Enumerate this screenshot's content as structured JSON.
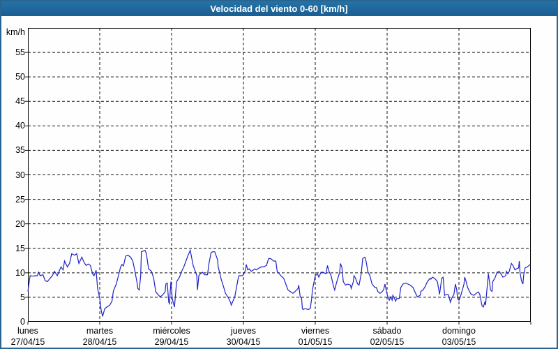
{
  "window": {
    "title": "Velocidad del viento 0-60 [km/h]"
  },
  "colors": {
    "titlebar_bg": "#1d6398",
    "frame_border": "#2a6592",
    "title_text": "#ffffff",
    "plot_bg": "#ffffff",
    "grid": "#111111",
    "axis": "#000000",
    "line": "#2121c8",
    "label_text": "#000000"
  },
  "axes": {
    "y_unit_label": "km/h",
    "y_ticks": [
      55,
      50,
      45,
      40,
      35,
      30,
      25,
      20,
      15,
      10,
      5
    ],
    "y_origin_label": "0"
  },
  "chart_data": {
    "type": "line",
    "title": "Velocidad del viento 0-60 [km/h]",
    "ylabel": "km/h",
    "xlabel": "",
    "ylim": [
      0,
      60
    ],
    "y_tick_step": 5,
    "grid": "dashed, horizontal every 5 km/h, vertical at each day boundary",
    "legend": "none",
    "days": [
      {
        "name": "lunes",
        "date": "27/04/15"
      },
      {
        "name": "martes",
        "date": "28/04/15"
      },
      {
        "name": "miércoles",
        "date": "29/04/15"
      },
      {
        "name": "jueves",
        "date": "30/04/15"
      },
      {
        "name": "viernes",
        "date": "01/05/15"
      },
      {
        "name": "sábado",
        "date": "02/05/15"
      },
      {
        "name": "domingo",
        "date": "03/05/15"
      }
    ],
    "x_unit": "days since lunes 27/04/15 00:00 (axis spans 7 days)",
    "series": [
      {
        "name": "Velocidad del viento",
        "unit": "km/h",
        "color": "#2121c8",
        "points": [
          [
            0,
            6.2
          ],
          [
            0.03,
            9.4
          ],
          [
            0.07,
            9.3
          ],
          [
            0.1,
            9.4
          ],
          [
            0.13,
            9.4
          ],
          [
            0.15,
            10.1
          ],
          [
            0.17,
            9.4
          ],
          [
            0.21,
            9.6
          ],
          [
            0.24,
            8.4
          ],
          [
            0.27,
            8.2
          ],
          [
            0.31,
            8.9
          ],
          [
            0.34,
            9.4
          ],
          [
            0.37,
            10.3
          ],
          [
            0.41,
            9.4
          ],
          [
            0.46,
            11.2
          ],
          [
            0.49,
            10.6
          ],
          [
            0.51,
            12.4
          ],
          [
            0.55,
            11.2
          ],
          [
            0.58,
            11.9
          ],
          [
            0.61,
            13.9
          ],
          [
            0.65,
            13.6
          ],
          [
            0.68,
            13.9
          ],
          [
            0.71,
            11.9
          ],
          [
            0.75,
            13.2
          ],
          [
            0.78,
            12.2
          ],
          [
            0.81,
            11.5
          ],
          [
            0.84,
            11.8
          ],
          [
            0.87,
            11.5
          ],
          [
            0.9,
            9.8
          ],
          [
            0.92,
            9.4
          ],
          [
            0.95,
            10.5
          ],
          [
            0.97,
            6.8
          ],
          [
            1.0,
            4.8
          ],
          [
            1.02,
            2.3
          ],
          [
            1.04,
            1.1
          ],
          [
            1.07,
            2.7
          ],
          [
            1.1,
            3.0
          ],
          [
            1.14,
            3.4
          ],
          [
            1.17,
            4.2
          ],
          [
            1.19,
            6.3
          ],
          [
            1.23,
            7.7
          ],
          [
            1.26,
            9.4
          ],
          [
            1.29,
            11.2
          ],
          [
            1.31,
            11.7
          ],
          [
            1.33,
            11.4
          ],
          [
            1.34,
            12.0
          ],
          [
            1.36,
            13.4
          ],
          [
            1.39,
            13.6
          ],
          [
            1.43,
            13.2
          ],
          [
            1.46,
            12.4
          ],
          [
            1.49,
            10.3
          ],
          [
            1.52,
            7.9
          ],
          [
            1.53,
            6.8
          ],
          [
            1.55,
            6.5
          ],
          [
            1.57,
            9.4
          ],
          [
            1.58,
            14.3
          ],
          [
            1.63,
            14.6
          ],
          [
            1.65,
            13.9
          ],
          [
            1.68,
            10.8
          ],
          [
            1.72,
            10.3
          ],
          [
            1.75,
            8.9
          ],
          [
            1.78,
            6.1
          ],
          [
            1.82,
            5.4
          ],
          [
            1.84,
            5.1
          ],
          [
            1.87,
            5.4
          ],
          [
            1.91,
            6.1
          ],
          [
            1.92,
            7.7
          ],
          [
            1.94,
            7.9
          ],
          [
            1.96,
            4.0
          ],
          [
            1.97,
            3.7
          ],
          [
            1.99,
            8.2
          ],
          [
            2.01,
            4.7
          ],
          [
            2.04,
            3.0
          ],
          [
            2.07,
            8.2
          ],
          [
            2.11,
            9.1
          ],
          [
            2.14,
            10.3
          ],
          [
            2.17,
            11.2
          ],
          [
            2.2,
            12.4
          ],
          [
            2.23,
            13.6
          ],
          [
            2.26,
            14.6
          ],
          [
            2.3,
            11.5
          ],
          [
            2.33,
            10.3
          ],
          [
            2.35,
            9.4
          ],
          [
            2.36,
            6.5
          ],
          [
            2.38,
            9.4
          ],
          [
            2.4,
            9.8
          ],
          [
            2.43,
            10.1
          ],
          [
            2.46,
            9.6
          ],
          [
            2.5,
            9.6
          ],
          [
            2.52,
            11.9
          ],
          [
            2.55,
            14.1
          ],
          [
            2.57,
            14.3
          ],
          [
            2.6,
            14.3
          ],
          [
            2.64,
            12.7
          ],
          [
            2.65,
            11.2
          ],
          [
            2.69,
            8.7
          ],
          [
            2.72,
            7.3
          ],
          [
            2.75,
            5.8
          ],
          [
            2.79,
            4.9
          ],
          [
            2.82,
            4.0
          ],
          [
            2.83,
            3.4
          ],
          [
            2.84,
            3.7
          ],
          [
            2.88,
            5.1
          ],
          [
            2.91,
            7.5
          ],
          [
            2.93,
            9.1
          ],
          [
            2.94,
            9.4
          ],
          [
            2.98,
            9.4
          ],
          [
            3.0,
            9.6
          ],
          [
            3.03,
            10.6
          ],
          [
            3.04,
            11.7
          ],
          [
            3.06,
            10.6
          ],
          [
            3.08,
            10.8
          ],
          [
            3.11,
            10.3
          ],
          [
            3.14,
            10.6
          ],
          [
            3.16,
            10.8
          ],
          [
            3.18,
            10.6
          ],
          [
            3.22,
            11.0
          ],
          [
            3.25,
            11.2
          ],
          [
            3.28,
            11.2
          ],
          [
            3.32,
            11.5
          ],
          [
            3.35,
            12.9
          ],
          [
            3.38,
            12.9
          ],
          [
            3.42,
            12.4
          ],
          [
            3.45,
            12.4
          ],
          [
            3.47,
            10.3
          ],
          [
            3.5,
            9.8
          ],
          [
            3.52,
            9.4
          ],
          [
            3.56,
            8.9
          ],
          [
            3.59,
            7.7
          ],
          [
            3.62,
            6.5
          ],
          [
            3.66,
            6.1
          ],
          [
            3.69,
            5.8
          ],
          [
            3.72,
            6.2
          ],
          [
            3.76,
            6.8
          ],
          [
            3.77,
            7.5
          ],
          [
            3.79,
            5.1
          ],
          [
            3.81,
            4.8
          ],
          [
            3.82,
            2.7
          ],
          [
            3.83,
            2.5
          ],
          [
            3.86,
            2.7
          ],
          [
            3.9,
            2.5
          ],
          [
            3.93,
            2.7
          ],
          [
            3.95,
            4.8
          ],
          [
            3.96,
            6.5
          ],
          [
            3.98,
            7.9
          ],
          [
            4.0,
            9.4
          ],
          [
            4.03,
            9.8
          ],
          [
            4.05,
            9.1
          ],
          [
            4.08,
            10.1
          ],
          [
            4.11,
            10.1
          ],
          [
            4.15,
            9.8
          ],
          [
            4.17,
            11.5
          ],
          [
            4.19,
            10.3
          ],
          [
            4.22,
            9.4
          ],
          [
            4.25,
            7.5
          ],
          [
            4.27,
            6.5
          ],
          [
            4.3,
            8.2
          ],
          [
            4.34,
            10.1
          ],
          [
            4.35,
            11.9
          ],
          [
            4.37,
            11.2
          ],
          [
            4.39,
            8.2
          ],
          [
            4.42,
            7.5
          ],
          [
            4.45,
            7.7
          ],
          [
            4.49,
            7.5
          ],
          [
            4.5,
            6.8
          ],
          [
            4.53,
            8.2
          ],
          [
            4.54,
            9.4
          ],
          [
            4.56,
            8.9
          ],
          [
            4.59,
            7.7
          ],
          [
            4.61,
            7.5
          ],
          [
            4.64,
            9.8
          ],
          [
            4.66,
            12.9
          ],
          [
            4.69,
            13.2
          ],
          [
            4.71,
            12.2
          ],
          [
            4.73,
            10.3
          ],
          [
            4.76,
            9.4
          ],
          [
            4.79,
            7.7
          ],
          [
            4.83,
            7.0
          ],
          [
            4.85,
            7.0
          ],
          [
            4.87,
            6.2
          ],
          [
            4.9,
            5.8
          ],
          [
            4.92,
            6.0
          ],
          [
            4.95,
            6.5
          ],
          [
            4.97,
            7.7
          ],
          [
            5.0,
            5.6
          ],
          [
            5.02,
            4.7
          ],
          [
            5.03,
            4.4
          ],
          [
            5.05,
            5.1
          ],
          [
            5.07,
            4.4
          ],
          [
            5.08,
            5.4
          ],
          [
            5.12,
            4.2
          ],
          [
            5.13,
            4.7
          ],
          [
            5.17,
            4.8
          ],
          [
            5.19,
            7.0
          ],
          [
            5.22,
            7.7
          ],
          [
            5.26,
            7.9
          ],
          [
            5.29,
            7.7
          ],
          [
            5.32,
            7.5
          ],
          [
            5.36,
            7.0
          ],
          [
            5.39,
            6.0
          ],
          [
            5.42,
            5.1
          ],
          [
            5.46,
            5.4
          ],
          [
            5.47,
            6.2
          ],
          [
            5.5,
            6.5
          ],
          [
            5.53,
            7.2
          ],
          [
            5.56,
            8.2
          ],
          [
            5.6,
            8.9
          ],
          [
            5.61,
            8.7
          ],
          [
            5.63,
            9.1
          ],
          [
            5.66,
            8.9
          ],
          [
            5.7,
            8.2
          ],
          [
            5.73,
            5.6
          ],
          [
            5.76,
            8.9
          ],
          [
            5.78,
            9.1
          ],
          [
            5.8,
            5.4
          ],
          [
            5.83,
            5.6
          ],
          [
            5.85,
            5.6
          ],
          [
            5.87,
            4.7
          ],
          [
            5.88,
            4.0
          ],
          [
            5.9,
            4.8
          ],
          [
            5.93,
            5.6
          ],
          [
            5.95,
            7.7
          ],
          [
            5.97,
            6.5
          ],
          [
            5.98,
            4.8
          ],
          [
            6.0,
            4.4
          ],
          [
            6.02,
            5.1
          ],
          [
            6.03,
            5.6
          ],
          [
            6.07,
            7.7
          ],
          [
            6.08,
            9.1
          ],
          [
            6.1,
            8.2
          ],
          [
            6.12,
            7.0
          ],
          [
            6.15,
            6.1
          ],
          [
            6.17,
            5.6
          ],
          [
            6.21,
            5.4
          ],
          [
            6.24,
            5.8
          ],
          [
            6.27,
            6.1
          ],
          [
            6.29,
            5.6
          ],
          [
            6.32,
            3.3
          ],
          [
            6.34,
            3.0
          ],
          [
            6.36,
            4.0
          ],
          [
            6.37,
            3.4
          ],
          [
            6.41,
            9.8
          ],
          [
            6.44,
            6.5
          ],
          [
            6.46,
            6.2
          ],
          [
            6.47,
            8.2
          ],
          [
            6.5,
            8.9
          ],
          [
            6.53,
            10.1
          ],
          [
            6.56,
            10.3
          ],
          [
            6.6,
            9.4
          ],
          [
            6.61,
            9.1
          ],
          [
            6.65,
            9.4
          ],
          [
            6.66,
            10.3
          ],
          [
            6.68,
            9.8
          ],
          [
            6.7,
            10.3
          ],
          [
            6.73,
            11.9
          ],
          [
            6.75,
            11.5
          ],
          [
            6.76,
            11.2
          ],
          [
            6.78,
            10.6
          ],
          [
            6.8,
            10.8
          ],
          [
            6.83,
            11.0
          ],
          [
            6.84,
            12.4
          ],
          [
            6.85,
            10.1
          ],
          [
            6.87,
            8.4
          ],
          [
            6.89,
            7.7
          ],
          [
            6.9,
            9.4
          ],
          [
            6.92,
            11.0
          ],
          [
            6.95,
            11.2
          ],
          [
            6.99,
            11.7
          ]
        ]
      }
    ]
  }
}
